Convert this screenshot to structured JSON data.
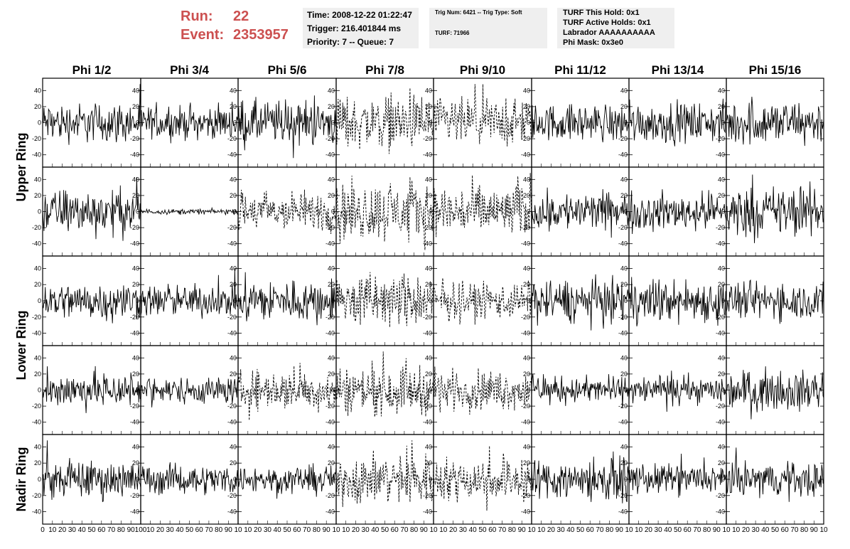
{
  "run_info": {
    "run_label": "Run:",
    "run_value": "22",
    "event_label": "Event:",
    "event_value": "2353957"
  },
  "time_box": {
    "time": "Time: 2008-12-22 01:22:47",
    "trigger": "Trigger: 216.401844 ms",
    "priority": "Priority: 7 -- Queue: 7"
  },
  "trig_box": {
    "trig": "Trig Num: 6421 -- Trig Type: Soft",
    "turf": "TURF: 71966"
  },
  "turf_box": {
    "hold": "TURF This Hold: 0x1",
    "active": "TURF Active Holds: 0x1",
    "labrador": "Labrador AAAAAAAAAA",
    "phimask": "Phi Mask: 0x3e0"
  },
  "colors": {
    "run_text": "#cc5050",
    "info_bg": "#efefef",
    "trace": "#000000"
  },
  "chart_data": {
    "type": "line",
    "columns": [
      "Phi 1/2",
      "Phi 3/4",
      "Phi 5/6",
      "Phi 7/8",
      "Phi 9/10",
      "Phi 11/12",
      "Phi 13/14",
      "Phi 15/16"
    ],
    "ring_labels": [
      {
        "text": "Upper Ring",
        "rows": [
          0,
          1
        ]
      },
      {
        "text": "Lower Ring",
        "rows": [
          2,
          3
        ]
      },
      {
        "text": "Nadir Ring",
        "rows": [
          4
        ]
      }
    ],
    "ylim": [
      -50,
      50
    ],
    "xlim": [
      0,
      100
    ],
    "yticks": [
      -40,
      -20,
      0,
      20,
      40
    ],
    "xticks": [
      0,
      10,
      20,
      30,
      40,
      50,
      60,
      70,
      80,
      90,
      100
    ],
    "xtick_labels_first": [
      "0",
      "10",
      "20",
      "30",
      "40",
      "50",
      "60",
      "70",
      "80",
      "90",
      "100"
    ],
    "xtick_labels_rest": [
      "",
      "10",
      "20",
      "30",
      "40",
      "50",
      "60",
      "70",
      "80",
      "90",
      "10"
    ],
    "styles": [
      [
        "solid",
        "solid",
        "solid",
        "dashed",
        "dashed",
        "solid",
        "solid",
        "solid"
      ],
      [
        "solid",
        "solid",
        "dashed",
        "dashed",
        "dashed",
        "solid",
        "solid",
        "solid"
      ],
      [
        "solid",
        "solid",
        "solid",
        "dashed",
        "dashed",
        "solid",
        "solid",
        "solid"
      ],
      [
        "solid",
        "solid",
        "dashed",
        "dashed",
        "dashed",
        "solid",
        "solid",
        "solid"
      ],
      [
        "solid",
        "solid",
        "solid",
        "dashed",
        "dashed",
        "solid",
        "solid",
        "solid"
      ]
    ],
    "amplitudes": [
      [
        15,
        12,
        17,
        20,
        18,
        14,
        15,
        17
      ],
      [
        17,
        2,
        15,
        22,
        20,
        15,
        14,
        19
      ],
      [
        14,
        12,
        16,
        20,
        14,
        16,
        16,
        14
      ],
      [
        14,
        10,
        15,
        18,
        15,
        10,
        10,
        15
      ],
      [
        14,
        11,
        10,
        19,
        16,
        16,
        11,
        13
      ]
    ]
  }
}
